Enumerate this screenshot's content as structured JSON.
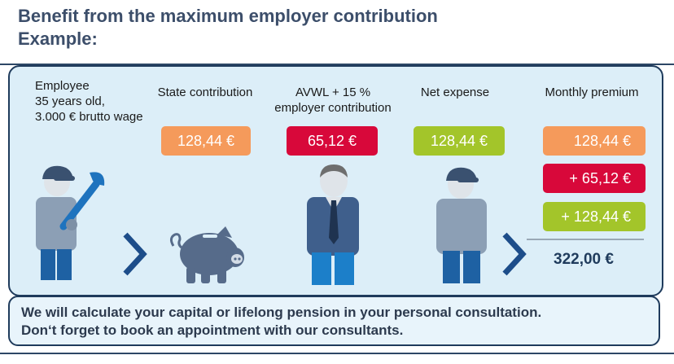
{
  "header": {
    "title_line1": "Benefit from the maximum employer contribution",
    "title_line2": "Example:"
  },
  "employee": {
    "line1": "Employee",
    "line2": "35 years old,",
    "line3": "3.000 € brutto wage"
  },
  "columns": {
    "state": {
      "label": "State contribution",
      "value": "128,44 €"
    },
    "avwl": {
      "label_line1": "AVWL + 15 %",
      "label_line2": "employer contribution",
      "value": "65,12 €"
    },
    "net": {
      "label": "Net expense",
      "value": "128,44 €"
    },
    "monthly": {
      "label": "Monthly premium",
      "item1": "128,44 €",
      "item2": "+ 65,12 €",
      "item3": "+ 128,44 €",
      "total": "322,00 €"
    }
  },
  "footer": {
    "line1": "We will calculate your capital or lifelong pension in your personal consultation.",
    "line2": "Don‘t forget to book an appointment with our consultants."
  },
  "colors": {
    "navy": "#1f3b5c",
    "orange": "#f59a5b",
    "red": "#d8083a",
    "green": "#a3c52a",
    "panel": "#dceef8"
  },
  "icons": [
    "worker-with-wrench-icon",
    "piggy-bank-icon",
    "businessman-icon",
    "employee-icon",
    "chevron-right-icon"
  ]
}
